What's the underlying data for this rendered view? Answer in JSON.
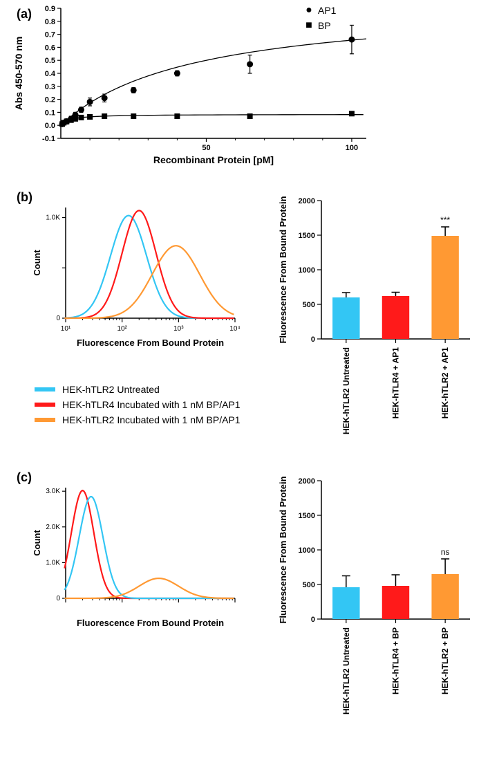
{
  "panel_a": {
    "label": "(a)",
    "ylabel": "Abs 450-570 nm",
    "xlabel": "Recombinant Protein [pM]",
    "xlim": [
      0,
      105
    ],
    "ylim": [
      -0.1,
      0.9
    ],
    "xticks": [
      50,
      100
    ],
    "yticks": [
      -0.1,
      0,
      0.1,
      0.2,
      0.3,
      0.4,
      0.5,
      0.6,
      0.7,
      0.8,
      0.9
    ],
    "legend": [
      {
        "marker": "circle",
        "label": "AP1"
      },
      {
        "marker": "square",
        "label": "BP"
      }
    ],
    "series": {
      "AP1": {
        "marker": "circle",
        "color": "#000000",
        "points": [
          {
            "x": 0.5,
            "y": 0.01,
            "err": 0.01
          },
          {
            "x": 1,
            "y": 0.02,
            "err": 0.01
          },
          {
            "x": 2,
            "y": 0.03,
            "err": 0.02
          },
          {
            "x": 3.5,
            "y": 0.05,
            "err": 0.02
          },
          {
            "x": 5,
            "y": 0.08,
            "err": 0.02
          },
          {
            "x": 7,
            "y": 0.12,
            "err": 0.02
          },
          {
            "x": 10,
            "y": 0.18,
            "err": 0.03
          },
          {
            "x": 15,
            "y": 0.21,
            "err": 0.03
          },
          {
            "x": 25,
            "y": 0.27,
            "err": 0.02
          },
          {
            "x": 40,
            "y": 0.4,
            "err": 0.02
          },
          {
            "x": 65,
            "y": 0.47,
            "err": 0.07
          },
          {
            "x": 100,
            "y": 0.66,
            "err": 0.11
          }
        ],
        "fit": "saturation"
      },
      "BP": {
        "marker": "square",
        "color": "#000000",
        "points": [
          {
            "x": 0.5,
            "y": 0.01,
            "err": 0.005
          },
          {
            "x": 1,
            "y": 0.02,
            "err": 0.005
          },
          {
            "x": 2,
            "y": 0.03,
            "err": 0.005
          },
          {
            "x": 3.5,
            "y": 0.04,
            "err": 0.005
          },
          {
            "x": 5,
            "y": 0.05,
            "err": 0.005
          },
          {
            "x": 7,
            "y": 0.06,
            "err": 0.005
          },
          {
            "x": 10,
            "y": 0.065,
            "err": 0.005
          },
          {
            "x": 15,
            "y": 0.07,
            "err": 0.005
          },
          {
            "x": 25,
            "y": 0.07,
            "err": 0.005
          },
          {
            "x": 40,
            "y": 0.07,
            "err": 0.005
          },
          {
            "x": 65,
            "y": 0.07,
            "err": 0.005
          },
          {
            "x": 100,
            "y": 0.09,
            "err": 0.005
          }
        ],
        "fit": "flat"
      }
    }
  },
  "shared_legend": [
    {
      "color": "#33c6f4",
      "label": "HEK-hTLR2 Untreated"
    },
    {
      "color": "#ff1a1a",
      "label": "HEK-hTLR4 Incubated with 1 nM BP/AP1"
    },
    {
      "color": "#ff9933",
      "label": "HEK-hTLR2 Incubated with 1 nM BP/AP1"
    }
  ],
  "panel_b": {
    "label": "(b)",
    "histogram": {
      "xlabel": "Fluorescence From Bound Protein",
      "ylabel": "Count",
      "xlog": true,
      "xticks": [
        10,
        100,
        1000,
        10000
      ],
      "xtick_labels": [
        "10¹",
        "10²",
        "10³",
        "10⁴"
      ],
      "ymax": 1100,
      "yticks": [
        0,
        500,
        1000
      ],
      "ytick_labels": [
        "0",
        "",
        "1.0K"
      ],
      "curves": [
        {
          "color": "#33c6f4",
          "peak_x": 130,
          "peak_y": 1020,
          "width": 0.32
        },
        {
          "color": "#ff1a1a",
          "peak_x": 200,
          "peak_y": 1070,
          "width": 0.3
        },
        {
          "color": "#ff9933",
          "peak_x": 900,
          "peak_y": 720,
          "width": 0.42
        }
      ]
    },
    "bars": {
      "ylabel": "Fluorescence From Bound Protein",
      "ylim": [
        0,
        2000
      ],
      "yticks": [
        0,
        500,
        1000,
        1500,
        2000
      ],
      "categories": [
        "HEK-hTLR2 Untreated",
        "HEK-hTLR4 + AP1",
        "HEK-hTLR2 + AP1"
      ],
      "values": [
        600,
        620,
        1490
      ],
      "errors": [
        70,
        55,
        130
      ],
      "colors": [
        "#33c6f4",
        "#ff1a1a",
        "#ff9933"
      ],
      "sig": [
        "",
        "",
        "***"
      ]
    }
  },
  "panel_c": {
    "label": "(c)",
    "histogram": {
      "xlabel": "Fluorescence From Bound Protein",
      "ylabel": "Count",
      "xlog": true,
      "ymax": 3100,
      "yticks": [
        0,
        1000,
        2000,
        3000
      ],
      "ytick_labels": [
        "0",
        "1.0K",
        "2.0K",
        "3.0K"
      ],
      "curves": [
        {
          "color": "#ff1a1a",
          "peak_x": 0.1,
          "peak_y": 3020,
          "width": 0.2
        },
        {
          "color": "#33c6f4",
          "peak_x": 0.15,
          "peak_y": 2850,
          "width": 0.21
        },
        {
          "color": "#ff9933",
          "peak_x": 0.55,
          "peak_y": 560,
          "width": 0.35
        }
      ]
    },
    "bars": {
      "ylabel": "Fluorescence From Bound Protein",
      "ylim": [
        0,
        2000
      ],
      "yticks": [
        0,
        500,
        1000,
        1500,
        2000
      ],
      "categories": [
        "HEK-hTLR2 Untreated",
        "HEK-hTLR4 + BP",
        "HEK-hTLR2 + BP"
      ],
      "values": [
        460,
        480,
        650
      ],
      "errors": [
        165,
        160,
        220
      ],
      "colors": [
        "#33c6f4",
        "#ff1a1a",
        "#ff9933"
      ],
      "sig": [
        "",
        "",
        "ns"
      ]
    }
  },
  "style": {
    "axis_color": "#000000",
    "axis_width": 1.5,
    "font_axis_label": 14,
    "font_tick": 11,
    "font_barlabel": 12,
    "bar_width": 0.55,
    "line_width": 2.2
  }
}
